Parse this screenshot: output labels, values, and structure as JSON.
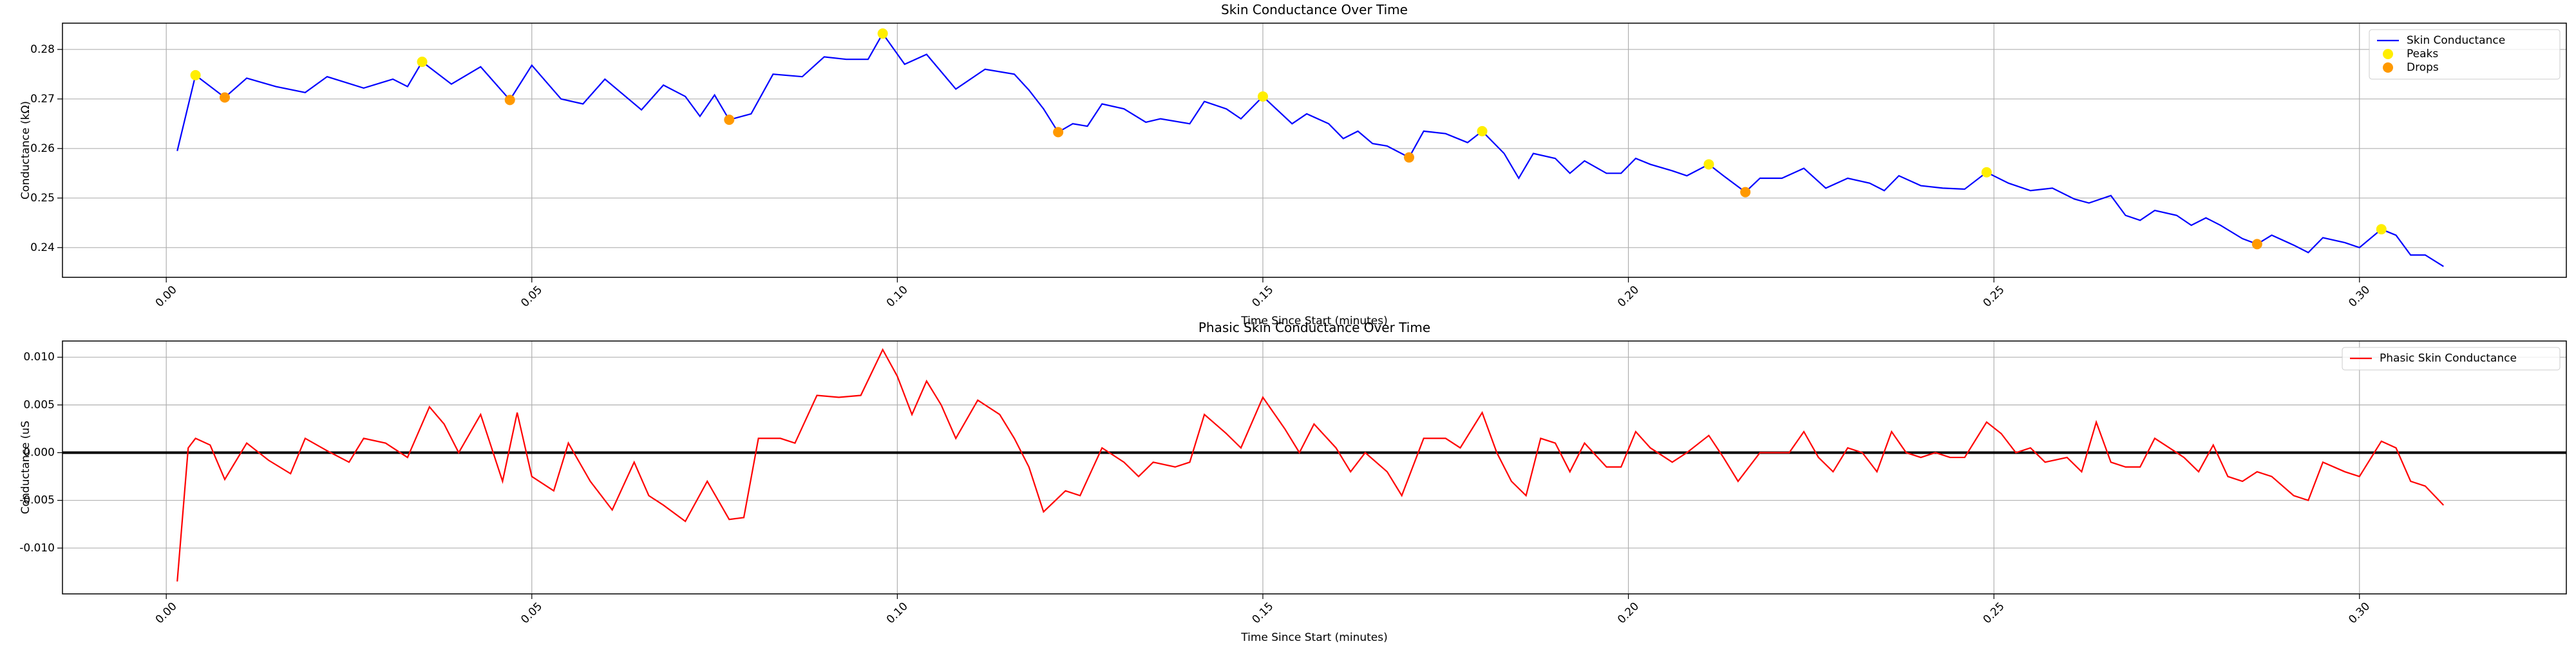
{
  "chart_data": [
    {
      "type": "line",
      "title": "Skin Conductance Over Time",
      "xlabel": "Time Since Start (minutes)",
      "ylabel": "Conductance (kΩ)",
      "xlim": [
        -0.0142,
        0.3283
      ],
      "ylim": [
        0.234,
        0.2853
      ],
      "xticks": [
        {
          "value": 0,
          "label": "0.00"
        },
        {
          "value": 0.05,
          "label": "0.05"
        },
        {
          "value": 0.1,
          "label": "0.10"
        },
        {
          "value": 0.15,
          "label": "0.15"
        },
        {
          "value": 0.2,
          "label": "0.20"
        },
        {
          "value": 0.25,
          "label": "0.25"
        },
        {
          "value": 0.3,
          "label": "0.30"
        }
      ],
      "yticks": [
        0.24,
        0.25,
        0.26,
        0.27,
        0.28
      ],
      "grid": true,
      "legend": "upper right",
      "series": [
        {
          "name": "Skin Conductance",
          "color": "#0000ff",
          "style": "line",
          "x": [
            0.0015,
            0.004,
            0.008,
            0.011,
            0.015,
            0.019,
            0.022,
            0.027,
            0.031,
            0.033,
            0.035,
            0.039,
            0.043,
            0.047,
            0.05,
            0.054,
            0.057,
            0.06,
            0.065,
            0.068,
            0.071,
            0.073,
            0.075,
            0.077,
            0.08,
            0.083,
            0.087,
            0.09,
            0.093,
            0.096,
            0.098,
            0.101,
            0.104,
            0.108,
            0.112,
            0.116,
            0.118,
            0.12,
            0.122,
            0.124,
            0.126,
            0.128,
            0.131,
            0.134,
            0.136,
            0.14,
            0.142,
            0.145,
            0.147,
            0.15,
            0.154,
            0.156,
            0.159,
            0.161,
            0.163,
            0.165,
            0.167,
            0.17,
            0.172,
            0.175,
            0.178,
            0.18,
            0.183,
            0.185,
            0.187,
            0.19,
            0.192,
            0.194,
            0.197,
            0.199,
            0.201,
            0.203,
            0.206,
            0.208,
            0.211,
            0.213,
            0.216,
            0.218,
            0.221,
            0.224,
            0.227,
            0.23,
            0.233,
            0.235,
            0.237,
            0.24,
            0.243,
            0.246,
            0.249,
            0.252,
            0.255,
            0.258,
            0.261,
            0.263,
            0.266,
            0.268,
            0.27,
            0.272,
            0.275,
            0.277,
            0.279,
            0.281,
            0.284,
            0.286,
            0.288,
            0.291,
            0.293,
            0.295,
            0.298,
            0.3,
            0.303,
            0.305,
            0.307,
            0.309,
            0.3115
          ],
          "values": [
            0.2595,
            0.2748,
            0.2703,
            0.2742,
            0.2725,
            0.2713,
            0.2745,
            0.2722,
            0.274,
            0.2725,
            0.2775,
            0.273,
            0.2765,
            0.2698,
            0.2768,
            0.27,
            0.269,
            0.274,
            0.2678,
            0.2728,
            0.2705,
            0.2665,
            0.2708,
            0.2658,
            0.267,
            0.275,
            0.2745,
            0.2785,
            0.278,
            0.278,
            0.2832,
            0.277,
            0.279,
            0.272,
            0.276,
            0.275,
            0.2718,
            0.268,
            0.2633,
            0.265,
            0.2645,
            0.269,
            0.268,
            0.2653,
            0.266,
            0.265,
            0.2695,
            0.268,
            0.266,
            0.2705,
            0.265,
            0.267,
            0.265,
            0.262,
            0.2635,
            0.261,
            0.2605,
            0.2582,
            0.2635,
            0.263,
            0.2612,
            0.2635,
            0.259,
            0.254,
            0.259,
            0.258,
            0.255,
            0.2575,
            0.255,
            0.255,
            0.258,
            0.2568,
            0.2555,
            0.2545,
            0.2568,
            0.2545,
            0.2512,
            0.254,
            0.254,
            0.256,
            0.252,
            0.254,
            0.253,
            0.2515,
            0.2545,
            0.2525,
            0.252,
            0.2518,
            0.2552,
            0.253,
            0.2515,
            0.252,
            0.2498,
            0.249,
            0.2505,
            0.2465,
            0.2455,
            0.2475,
            0.2465,
            0.2445,
            0.246,
            0.2445,
            0.2418,
            0.2407,
            0.2425,
            0.2405,
            0.239,
            0.242,
            0.241,
            0.24,
            0.2437,
            0.2425,
            0.2385,
            0.2385,
            0.2362
          ]
        },
        {
          "name": "Peaks",
          "color": "#ffee00",
          "style": "points",
          "x": [
            0.004,
            0.035,
            0.098,
            0.15,
            0.18,
            0.211,
            0.249,
            0.303
          ],
          "values": [
            0.2748,
            0.2775,
            0.2832,
            0.2705,
            0.2635,
            0.2568,
            0.2552,
            0.2437
          ]
        },
        {
          "name": "Drops",
          "color": "#ff9900",
          "style": "points",
          "x": [
            0.008,
            0.047,
            0.077,
            0.122,
            0.17,
            0.216,
            0.286
          ],
          "values": [
            0.2703,
            0.2698,
            0.2658,
            0.2633,
            0.2582,
            0.2512,
            0.2407
          ]
        }
      ]
    },
    {
      "type": "line",
      "title": "Phasic Skin Conductance Over Time",
      "xlabel": "Time Since Start (minutes)",
      "ylabel": "Conductance (uS",
      "xlim": [
        -0.0142,
        0.3283
      ],
      "ylim": [
        -0.0148,
        0.0117
      ],
      "xticks": [
        {
          "value": 0,
          "label": "0.00"
        },
        {
          "value": 0.05,
          "label": "0.05"
        },
        {
          "value": 0.1,
          "label": "0.10"
        },
        {
          "value": 0.15,
          "label": "0.15"
        },
        {
          "value": 0.2,
          "label": "0.20"
        },
        {
          "value": 0.25,
          "label": "0.25"
        },
        {
          "value": 0.3,
          "label": "0.30"
        }
      ],
      "yticks": [
        {
          "value": -0.01,
          "label": "-0.010"
        },
        {
          "value": -0.005,
          "label": "-0.005"
        },
        {
          "value": 0,
          "label": "0.000"
        },
        {
          "value": 0.005,
          "label": "0.005"
        },
        {
          "value": 0.01,
          "label": "0.010"
        }
      ],
      "grid": true,
      "legend": "upper right",
      "reference_line": 0,
      "series": [
        {
          "name": "Phasic Skin Conductance",
          "color": "#ff0000",
          "style": "line",
          "x": [
            0.0015,
            0.003,
            0.004,
            0.006,
            0.008,
            0.011,
            0.014,
            0.017,
            0.019,
            0.022,
            0.025,
            0.027,
            0.03,
            0.033,
            0.036,
            0.038,
            0.04,
            0.043,
            0.046,
            0.048,
            0.05,
            0.053,
            0.055,
            0.058,
            0.061,
            0.064,
            0.066,
            0.068,
            0.071,
            0.074,
            0.077,
            0.079,
            0.081,
            0.084,
            0.086,
            0.089,
            0.092,
            0.095,
            0.098,
            0.1,
            0.102,
            0.104,
            0.106,
            0.108,
            0.111,
            0.114,
            0.116,
            0.118,
            0.12,
            0.123,
            0.125,
            0.128,
            0.131,
            0.133,
            0.135,
            0.138,
            0.14,
            0.142,
            0.145,
            0.147,
            0.15,
            0.153,
            0.155,
            0.157,
            0.16,
            0.162,
            0.164,
            0.167,
            0.169,
            0.172,
            0.175,
            0.177,
            0.18,
            0.182,
            0.184,
            0.186,
            0.188,
            0.19,
            0.192,
            0.194,
            0.197,
            0.199,
            0.201,
            0.203,
            0.206,
            0.208,
            0.211,
            0.213,
            0.215,
            0.218,
            0.22,
            0.222,
            0.224,
            0.226,
            0.228,
            0.23,
            0.232,
            0.234,
            0.236,
            0.238,
            0.24,
            0.242,
            0.244,
            0.246,
            0.249,
            0.251,
            0.253,
            0.255,
            0.257,
            0.26,
            0.262,
            0.264,
            0.266,
            0.268,
            0.27,
            0.272,
            0.274,
            0.276,
            0.278,
            0.28,
            0.282,
            0.284,
            0.286,
            0.288,
            0.291,
            0.293,
            0.295,
            0.298,
            0.3,
            0.303,
            0.305,
            0.307,
            0.309,
            0.3115
          ],
          "values": [
            -0.0135,
            0.0005,
            0.0015,
            0.0008,
            -0.0028,
            0.001,
            -0.0008,
            -0.0022,
            0.0015,
            0.0002,
            -0.001,
            0.0015,
            0.001,
            -0.0005,
            0.0048,
            0.003,
            0,
            0.004,
            -0.003,
            0.0042,
            -0.0025,
            -0.004,
            0.001,
            -0.003,
            -0.006,
            -0.001,
            -0.0045,
            -0.0055,
            -0.0072,
            -0.003,
            -0.007,
            -0.0068,
            0.0015,
            0.0015,
            0.001,
            0.006,
            0.0058,
            0.006,
            0.0108,
            0.008,
            0.004,
            0.0075,
            0.005,
            0.0015,
            0.0055,
            0.004,
            0.0015,
            -0.0015,
            -0.0062,
            -0.004,
            -0.0045,
            0.0005,
            -0.001,
            -0.0025,
            -0.001,
            -0.0015,
            -0.001,
            0.004,
            0.002,
            0.0005,
            0.0058,
            0.0025,
            0,
            0.003,
            0.0005,
            -0.002,
            0,
            -0.002,
            -0.0045,
            0.0015,
            0.0015,
            0.0005,
            0.0042,
            0,
            -0.003,
            -0.0045,
            0.0015,
            0.001,
            -0.002,
            0.001,
            -0.0015,
            -0.0015,
            0.0022,
            0.0005,
            -0.001,
            0,
            0.0018,
            -0.0005,
            -0.003,
            0,
            0,
            0,
            0.0022,
            -0.0005,
            -0.002,
            0.0005,
            0,
            -0.002,
            0.0022,
            0,
            -0.0005,
            0,
            -0.0005,
            -0.0005,
            0.0032,
            0.002,
            0,
            0.0005,
            -0.001,
            -0.0005,
            -0.002,
            0.0032,
            -0.001,
            -0.0015,
            -0.0015,
            0.0015,
            0.0005,
            -0.0005,
            -0.002,
            0.0008,
            -0.0025,
            -0.003,
            -0.002,
            -0.0025,
            -0.0045,
            -0.005,
            -0.001,
            -0.002,
            -0.0025,
            0.0012,
            0.0005,
            -0.003,
            -0.0035,
            -0.0055
          ]
        }
      ]
    }
  ]
}
